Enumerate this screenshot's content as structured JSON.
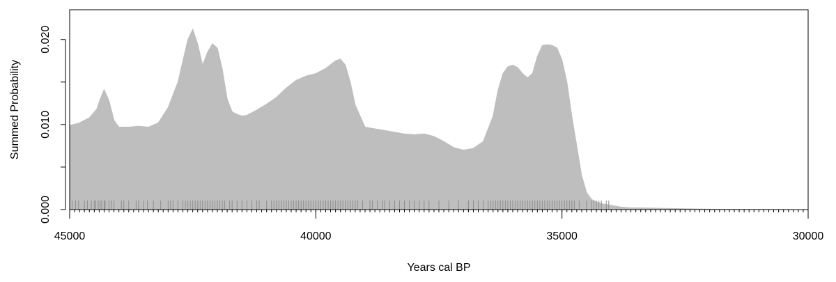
{
  "chart_data": {
    "type": "area",
    "title": "",
    "xlabel": "Years cal BP",
    "ylabel": "Summed Probability",
    "xlim": [
      45000,
      30000
    ],
    "ylim": [
      0,
      0.0235
    ],
    "x_ticks": [
      45000,
      40000,
      35000,
      30000
    ],
    "x_tick_labels": [
      "45000",
      "40000",
      "35000",
      "30000"
    ],
    "y_ticks": [
      0.0,
      0.005,
      0.01,
      0.015,
      0.02
    ],
    "y_tick_labels": [
      "0.000",
      "",
      "0.010",
      "",
      "0.020"
    ],
    "fill_color": "#bebebe",
    "rug_color": "#8c8c8c",
    "series": [
      {
        "x": [
          45000,
          44800,
          44600,
          44450,
          44380,
          44300,
          44200,
          44100,
          44000,
          43800,
          43600,
          43400,
          43200,
          43000,
          42800,
          42700,
          42600,
          42500,
          42400,
          42300,
          42200,
          42100,
          42000,
          41900,
          41800,
          41700,
          41600,
          41500,
          41400,
          41300,
          41200,
          41000,
          40800,
          40600,
          40400,
          40200,
          40000,
          39800,
          39600,
          39500,
          39400,
          39300,
          39200,
          39000,
          38800,
          38600,
          38400,
          38200,
          38000,
          37800,
          37600,
          37400,
          37200,
          37000,
          36800,
          36600,
          36400,
          36300,
          36200,
          36100,
          36000,
          35900,
          35800,
          35700,
          35600,
          35500,
          35400,
          35300,
          35200,
          35100,
          35000,
          34900,
          34800,
          34700,
          34600,
          34500,
          34400,
          34300,
          34200,
          34100,
          34000,
          33900,
          33800,
          33600,
          33400,
          33000,
          32500,
          32000,
          31500,
          31000,
          30500,
          30000
        ],
        "y": [
          0.0099,
          0.0102,
          0.0108,
          0.0118,
          0.013,
          0.0141,
          0.0128,
          0.0105,
          0.0097,
          0.0097,
          0.0098,
          0.0097,
          0.0102,
          0.012,
          0.015,
          0.0175,
          0.02,
          0.0212,
          0.0195,
          0.017,
          0.0185,
          0.0195,
          0.019,
          0.0165,
          0.013,
          0.0115,
          0.0112,
          0.011,
          0.0111,
          0.0114,
          0.0117,
          0.0124,
          0.0132,
          0.0143,
          0.0152,
          0.0157,
          0.016,
          0.0166,
          0.0175,
          0.0177,
          0.017,
          0.015,
          0.0123,
          0.0097,
          0.0095,
          0.0093,
          0.0091,
          0.0089,
          0.0088,
          0.0089,
          0.0086,
          0.008,
          0.0073,
          0.007,
          0.0072,
          0.008,
          0.011,
          0.014,
          0.016,
          0.0168,
          0.017,
          0.0167,
          0.016,
          0.0155,
          0.016,
          0.018,
          0.0193,
          0.0194,
          0.0193,
          0.019,
          0.0176,
          0.015,
          0.011,
          0.0075,
          0.004,
          0.002,
          0.0012,
          0.0009,
          0.0007,
          0.0006,
          0.0005,
          0.0004,
          0.0003,
          0.0002,
          0.0002,
          0.00015,
          0.0001,
          5e-05,
          3e-05,
          2e-05,
          1e-05,
          0.0
        ]
      }
    ],
    "rug": [
      44950,
      44880,
      44820,
      44700,
      44640,
      44560,
      44500,
      44470,
      44420,
      44380,
      44350,
      44300,
      44280,
      44200,
      44150,
      44100,
      43950,
      43900,
      43800,
      43650,
      43600,
      43500,
      43420,
      43300,
      43150,
      43000,
      42950,
      42900,
      42800,
      42700,
      42650,
      42600,
      42550,
      42500,
      42450,
      42400,
      42350,
      42300,
      42250,
      42200,
      42150,
      42100,
      42050,
      42000,
      41950,
      41900,
      41850,
      41750,
      41700,
      41600,
      41500,
      41400,
      41300,
      41200,
      41150,
      41000,
      40900,
      40850,
      40800,
      40750,
      40700,
      40650,
      40600,
      40550,
      40500,
      40450,
      40400,
      40350,
      40300,
      40250,
      40200,
      40150,
      40100,
      40050,
      40000,
      39950,
      39900,
      39850,
      39800,
      39750,
      39700,
      39650,
      39600,
      39550,
      39500,
      39450,
      39400,
      39350,
      39300,
      39250,
      39200,
      39150,
      39050,
      38900,
      38850,
      38750,
      38650,
      38600,
      38500,
      38400,
      38300,
      38200,
      38100,
      38000,
      37900,
      37800,
      37700,
      37500,
      37300,
      37100,
      36900,
      36800,
      36700,
      36600,
      36500,
      36450,
      36400,
      36350,
      36300,
      36250,
      36200,
      36150,
      36100,
      36050,
      36000,
      35950,
      35900,
      35850,
      35800,
      35750,
      35700,
      35650,
      35600,
      35550,
      35500,
      35450,
      35400,
      35350,
      35300,
      35250,
      35200,
      35150,
      35100,
      35050,
      35000,
      34950,
      34900,
      34850,
      34800,
      34750,
      34650,
      34500,
      34400,
      34350,
      34300,
      34250,
      34200,
      34100,
      34050
    ]
  }
}
